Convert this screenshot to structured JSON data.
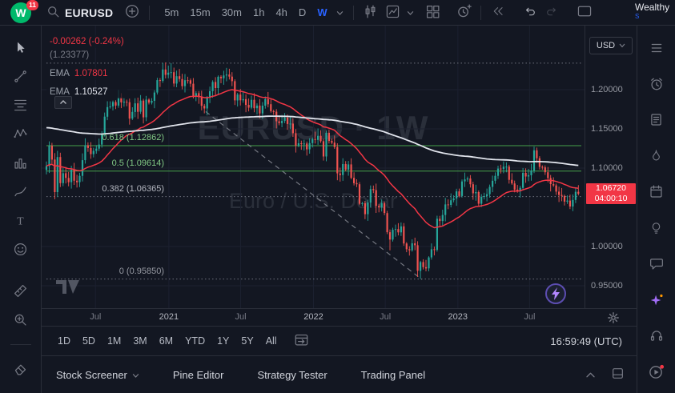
{
  "toolbar": {
    "logo_letter": "W",
    "badge": "11",
    "symbol": "EURUSD",
    "timeframes": [
      "5m",
      "15m",
      "30m",
      "1h",
      "4h",
      "D",
      "W"
    ],
    "active_timeframe": "W",
    "brand": "Wealthy",
    "brand_sub": "S"
  },
  "legend": {
    "change": "-0.00262 (-0.24%)",
    "fib_top": "(1.23377)",
    "emas": [
      {
        "label": "EMA",
        "value": "1.07801",
        "color": "#f23645"
      },
      {
        "label": "EMA",
        "value": "1.10527",
        "color": "#e0e3eb"
      }
    ]
  },
  "watermark": {
    "line1": "EURUSD · 1W",
    "line2": "Euro / U.S. Dollar"
  },
  "price_axis": {
    "currency": "USD",
    "ticks": [
      {
        "label": "1.20000",
        "price": 1.2
      },
      {
        "label": "1.15000",
        "price": 1.15
      },
      {
        "label": "1.10000",
        "price": 1.1
      },
      {
        "label": "1.00000",
        "price": 1.0
      },
      {
        "label": "0.95000",
        "price": 0.95
      }
    ],
    "last": {
      "label": "1.06720",
      "countdown": "04:00:10",
      "price": 1.0672
    }
  },
  "time_axis": [
    {
      "label": "Jul",
      "week": 17.7,
      "year": false
    },
    {
      "label": "2021",
      "week": 44.2,
      "year": true
    },
    {
      "label": "Jul",
      "week": 70.1,
      "year": false
    },
    {
      "label": "2022",
      "week": 96.4,
      "year": true
    },
    {
      "label": "Jul",
      "week": 122.3,
      "year": false
    },
    {
      "label": "2023",
      "week": 148.5,
      "year": true
    },
    {
      "label": "Jul",
      "week": 174.4,
      "year": false
    }
  ],
  "fib_levels": [
    {
      "label": "1 (1.23377)",
      "price": 1.23377,
      "style": "dotted",
      "line_color": "#787b86",
      "label_color": "#787b86",
      "show_label": false
    },
    {
      "label": "0.618 (1.12862)",
      "price": 1.12862,
      "style": "solid",
      "line_color": "#4caf50",
      "label_color": "#81c784",
      "show_label": true
    },
    {
      "label": "0.5 (1.09614)",
      "price": 1.09614,
      "style": "solid",
      "line_color": "#4caf50",
      "label_color": "#81c784",
      "show_label": true
    },
    {
      "label": "0.382 (1.06365)",
      "price": 1.06365,
      "style": "dotted",
      "line_color": "#787b86",
      "label_color": "#b2b5be",
      "show_label": true
    },
    {
      "label": "0 (0.95850)",
      "price": 0.9585,
      "style": "dotted",
      "line_color": "#787b86",
      "label_color": "#9598a1",
      "show_label": true
    }
  ],
  "range_bar": {
    "ranges": [
      "1D",
      "5D",
      "1M",
      "3M",
      "6M",
      "YTD",
      "1Y",
      "5Y",
      "All"
    ],
    "clock": "16:59:49 (UTC)"
  },
  "bottom_panel": {
    "tabs": [
      "Stock Screener",
      "Pine Editor",
      "Strategy Tester",
      "Trading Panel"
    ]
  },
  "left_toolbar": [
    "cursor",
    "trend-line",
    "fib-retracement",
    "xabcd-pattern",
    "forecast",
    "brush",
    "text",
    "emoji",
    "measure",
    "zoom",
    "separator",
    "eraser"
  ],
  "right_sidebar": [
    "watchlist",
    "alerts",
    "news",
    "hotlist",
    "calendar",
    "ideas",
    "chat",
    "ai-sparkle",
    "help",
    "video"
  ],
  "colors": {
    "bg": "#131722",
    "border": "#2a2e39",
    "accent": "#2962ff",
    "up": "#26a69a",
    "down": "#ef5350",
    "red": "#f23645",
    "ema_fast": "#f23645",
    "ema_slow": "#e0e3eb",
    "grid": "#1c2030",
    "last_label_bg": "#f23645"
  },
  "chart_data": {
    "type": "candlestick",
    "symbol": "EURUSD",
    "interval": "1W",
    "first_open": 1.0977,
    "closes": [
      1.1026,
      1.1284,
      1.1109,
      1.0694,
      1.1141,
      1.0808,
      1.0935,
      1.0875,
      1.0821,
      1.098,
      1.0839,
      1.082,
      1.0901,
      1.1101,
      1.1291,
      1.1256,
      1.1177,
      1.1219,
      1.1248,
      1.13,
      1.1428,
      1.1656,
      1.1778,
      1.1787,
      1.1842,
      1.1797,
      1.1903,
      1.1838,
      1.1846,
      1.184,
      1.1631,
      1.1716,
      1.1826,
      1.1718,
      1.186,
      1.1647,
      1.1873,
      1.1834,
      1.1857,
      1.1963,
      1.2121,
      1.2112,
      1.2257,
      1.2189,
      1.2216,
      1.2222,
      1.2077,
      1.2171,
      1.2135,
      1.2045,
      1.212,
      1.2119,
      1.2075,
      1.1915,
      1.1955,
      1.1903,
      1.1794,
      1.176,
      1.1899,
      1.1981,
      1.2098,
      1.202,
      1.2164,
      1.2145,
      1.2181,
      1.2193,
      1.2166,
      1.2108,
      1.1863,
      1.1938,
      1.1865,
      1.1879,
      1.1806,
      1.177,
      1.187,
      1.1763,
      1.1797,
      1.1697,
      1.1796,
      1.188,
      1.1814,
      1.1725,
      1.1719,
      1.1597,
      1.1573,
      1.1601,
      1.1645,
      1.1562,
      1.1567,
      1.1445,
      1.1287,
      1.1316,
      1.1311,
      1.1313,
      1.1239,
      1.1318,
      1.137,
      1.1359,
      1.1411,
      1.1343,
      1.1148,
      1.145,
      1.1346,
      1.1324,
      1.1268,
      1.0932,
      1.0911,
      1.1051,
      1.0981,
      1.1047,
      1.0876,
      1.0808,
      1.0794,
      1.0545,
      1.0552,
      1.0412,
      1.0561,
      1.0733,
      1.0719,
      1.0518,
      1.0498,
      1.0553,
      1.0427,
      1.0183,
      1.0089,
      1.0213,
      1.0222,
      1.018,
      1.0257,
      1.0039,
      0.9966,
      0.9952,
      1.0041,
      1.0016,
      0.969,
      0.9802,
      0.9737,
      0.9721,
      0.9861,
      0.9965,
      0.9957,
      1.0354,
      1.0325,
      1.0402,
      1.0537,
      1.0531,
      1.059,
      1.0613,
      1.0703,
      1.0644,
      1.083,
      1.0855,
      1.0867,
      1.0794,
      1.0679,
      1.0694,
      1.0546,
      1.0633,
      1.0643,
      1.0667,
      1.076,
      1.0839,
      1.0901,
      1.0994,
      1.0987,
      1.1018,
      1.1018,
      1.085,
      1.0804,
      1.0725,
      1.0707,
      1.0748,
      1.0939,
      1.0893,
      1.0909,
      1.0968,
      1.1227,
      1.1126,
      1.1016,
      1.1009,
      1.0947,
      1.0873,
      1.0795,
      1.0779,
      1.07,
      1.0657,
      1.0645,
      1.0573,
      1.0586,
      1.051,
      1.0594,
      1.0698,
      1.0672
    ],
    "specials": {
      "45": {
        "high": 1.23377
      },
      "66": {
        "high": 1.2266
      },
      "115": {
        "low": 1.0349
      },
      "124": {
        "low": 0.9952
      },
      "134": {
        "low": 0.9612
      },
      "135": {
        "low": 0.9585
      },
      "176": {
        "high": 1.1275
      }
    },
    "emas": [
      {
        "period": 30,
        "color": "#f23645",
        "width": 1.5
      },
      {
        "period": 200,
        "seed": 1.152,
        "color": "#e0e3eb",
        "width": 1.8
      }
    ],
    "trendline": {
      "w1": 57.5,
      "p1": 1.172,
      "w2": 135.5,
      "p2": 0.958,
      "style": "dashed",
      "color": "#9598a1"
    }
  }
}
